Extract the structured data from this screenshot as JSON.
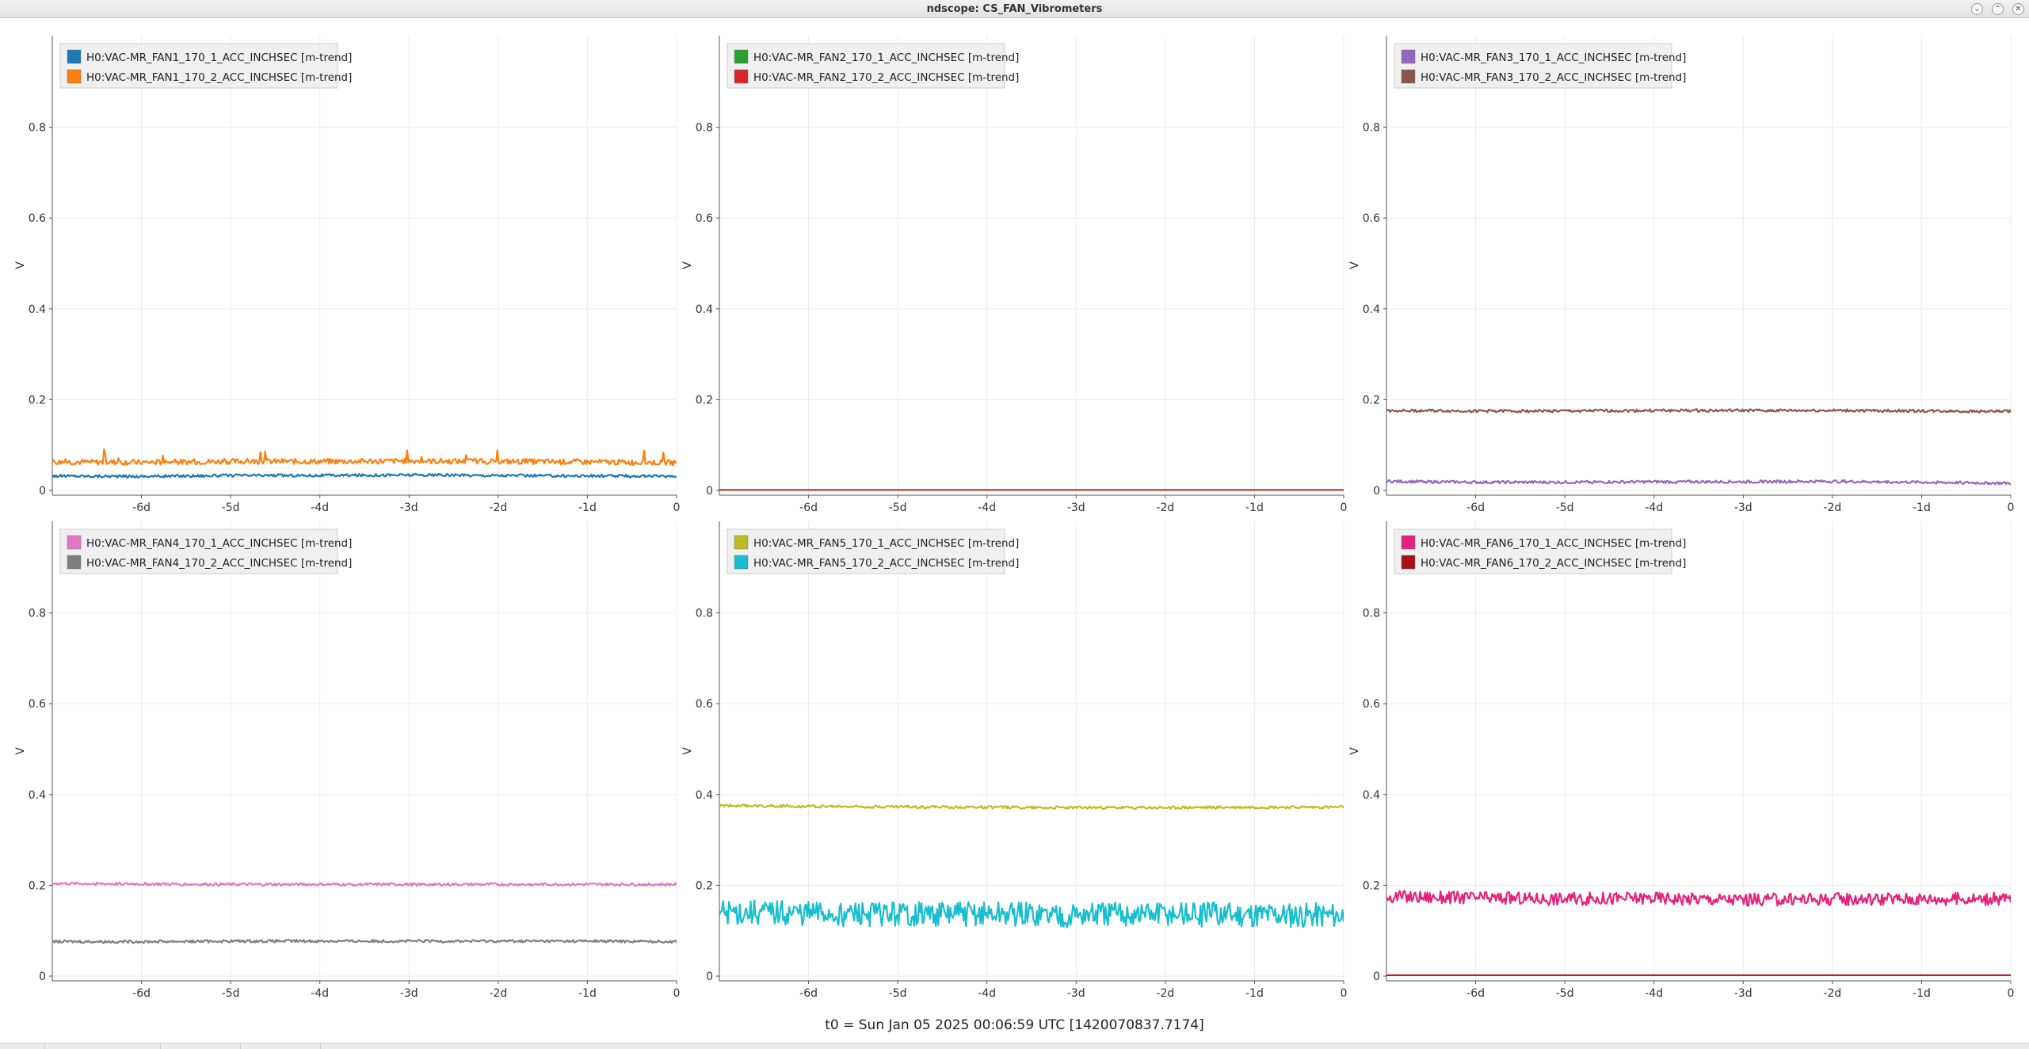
{
  "window": {
    "title": "ndscope: CS_FAN_Vibrometers"
  },
  "footer": {
    "t0_text": "t0 = Sun Jan 05 2025 00:06:59 UTC [1420070837.7174]"
  },
  "chart_data": [
    {
      "type": "line",
      "ylabel": "V",
      "ylim": [
        0,
        1
      ],
      "yticks": [
        0,
        0.2,
        0.4,
        0.6,
        0.8
      ],
      "ytick_labels": [
        "0",
        "0.2",
        "0.4",
        "0.6",
        "0.8"
      ],
      "xlim": [
        -7,
        0
      ],
      "xticks": [
        -6,
        -5,
        -4,
        -3,
        -2,
        -1,
        0
      ],
      "xtick_labels": [
        "-6d",
        "-5d",
        "-4d",
        "-3d",
        "-2d",
        "-1d",
        "0"
      ],
      "grid": true,
      "legend": "top-left",
      "series": [
        {
          "name": "H0:VAC-MR_FAN1_170_1_ACC_INCHSEC [m-trend]",
          "color": "#1f77b4",
          "x": [
            -7,
            -6,
            -5,
            -4,
            -3,
            -2,
            -1,
            0
          ],
          "y": [
            0.032,
            0.031,
            0.033,
            0.033,
            0.034,
            0.033,
            0.032,
            0.031
          ]
        },
        {
          "name": "H0:VAC-MR_FAN1_170_2_ACC_INCHSEC [m-trend]",
          "color": "#ff7f0e",
          "x": [
            -7,
            -6,
            -5,
            -4,
            -3,
            -2,
            -1,
            0
          ],
          "y": [
            0.063,
            0.062,
            0.064,
            0.064,
            0.065,
            0.064,
            0.063,
            0.061
          ]
        }
      ]
    },
    {
      "type": "line",
      "ylabel": "V",
      "ylim": [
        0,
        1
      ],
      "yticks": [
        0,
        0.2,
        0.4,
        0.6,
        0.8
      ],
      "ytick_labels": [
        "0",
        "0.2",
        "0.4",
        "0.6",
        "0.8"
      ],
      "xlim": [
        -7,
        0
      ],
      "xticks": [
        -6,
        -5,
        -4,
        -3,
        -2,
        -1,
        0
      ],
      "xtick_labels": [
        "-6d",
        "-5d",
        "-4d",
        "-3d",
        "-2d",
        "-1d",
        "0"
      ],
      "grid": true,
      "legend": "top-left",
      "series": [
        {
          "name": "H0:VAC-MR_FAN2_170_1_ACC_INCHSEC [m-trend]",
          "color": "#2ca02c",
          "x": [
            -7,
            0
          ],
          "y": [
            0.001,
            0.001
          ]
        },
        {
          "name": "H0:VAC-MR_FAN2_170_2_ACC_INCHSEC [m-trend]",
          "color": "#d62728",
          "x": [
            -7,
            0
          ],
          "y": [
            0.001,
            0.001
          ]
        }
      ]
    },
    {
      "type": "line",
      "ylabel": "V",
      "ylim": [
        0,
        1
      ],
      "yticks": [
        0,
        0.2,
        0.4,
        0.6,
        0.8
      ],
      "ytick_labels": [
        "0",
        "0.2",
        "0.4",
        "0.6",
        "0.8"
      ],
      "xlim": [
        -7,
        0
      ],
      "xticks": [
        -6,
        -5,
        -4,
        -3,
        -2,
        -1,
        0
      ],
      "xtick_labels": [
        "-6d",
        "-5d",
        "-4d",
        "-3d",
        "-2d",
        "-1d",
        "0"
      ],
      "grid": true,
      "legend": "top-left",
      "series": [
        {
          "name": "H0:VAC-MR_FAN3_170_1_ACC_INCHSEC [m-trend]",
          "color": "#9467bd",
          "x": [
            -7,
            -6,
            -5,
            -4,
            -3,
            -2,
            -1,
            0
          ],
          "y": [
            0.02,
            0.018,
            0.018,
            0.019,
            0.019,
            0.02,
            0.018,
            0.016
          ]
        },
        {
          "name": "H0:VAC-MR_FAN3_170_2_ACC_INCHSEC [m-trend]",
          "color": "#8c564b",
          "x": [
            -7,
            -6,
            -5,
            -4,
            -3,
            -2,
            -1,
            0
          ],
          "y": [
            0.176,
            0.175,
            0.175,
            0.176,
            0.176,
            0.176,
            0.175,
            0.174
          ]
        }
      ]
    },
    {
      "type": "line",
      "ylabel": "V",
      "ylim": [
        0,
        1
      ],
      "yticks": [
        0,
        0.2,
        0.4,
        0.6,
        0.8
      ],
      "ytick_labels": [
        "0",
        "0.2",
        "0.4",
        "0.6",
        "0.8"
      ],
      "xlim": [
        -7,
        0
      ],
      "xticks": [
        -6,
        -5,
        -4,
        -3,
        -2,
        -1,
        0
      ],
      "xtick_labels": [
        "-6d",
        "-5d",
        "-4d",
        "-3d",
        "-2d",
        "-1d",
        "0"
      ],
      "grid": true,
      "legend": "top-left",
      "series": [
        {
          "name": "H0:VAC-MR_FAN4_170_1_ACC_INCHSEC [m-trend]",
          "color": "#e377c2",
          "x": [
            -7,
            -6,
            -5,
            -4,
            -3,
            -2,
            -1,
            0
          ],
          "y": [
            0.204,
            0.203,
            0.202,
            0.202,
            0.202,
            0.202,
            0.202,
            0.202
          ]
        },
        {
          "name": "H0:VAC-MR_FAN4_170_2_ACC_INCHSEC [m-trend]",
          "color": "#7f7f7f",
          "x": [
            -7,
            -6,
            -5,
            -4,
            -3,
            -2,
            -1,
            0
          ],
          "y": [
            0.076,
            0.076,
            0.077,
            0.077,
            0.077,
            0.077,
            0.077,
            0.076
          ]
        }
      ]
    },
    {
      "type": "line",
      "ylabel": "V",
      "ylim": [
        0,
        1
      ],
      "yticks": [
        0,
        0.2,
        0.4,
        0.6,
        0.8
      ],
      "ytick_labels": [
        "0",
        "0.2",
        "0.4",
        "0.6",
        "0.8"
      ],
      "xlim": [
        -7,
        0
      ],
      "xticks": [
        -6,
        -5,
        -4,
        -3,
        -2,
        -1,
        0
      ],
      "xtick_labels": [
        "-6d",
        "-5d",
        "-4d",
        "-3d",
        "-2d",
        "-1d",
        "0"
      ],
      "grid": true,
      "legend": "top-left",
      "series": [
        {
          "name": "H0:VAC-MR_FAN5_170_1_ACC_INCHSEC [m-trend]",
          "color": "#bcbd22",
          "x": [
            -7,
            -6,
            -5,
            -4,
            -3,
            -2,
            -1,
            0
          ],
          "y": [
            0.376,
            0.374,
            0.373,
            0.372,
            0.371,
            0.371,
            0.372,
            0.372
          ]
        },
        {
          "name": "H0:VAC-MR_FAN5_170_2_ACC_INCHSEC [m-trend]",
          "color": "#17becf",
          "x": [
            -7,
            -6,
            -5,
            -4,
            -3,
            -2,
            -1,
            0
          ],
          "y": [
            0.14,
            0.137,
            0.136,
            0.136,
            0.134,
            0.136,
            0.136,
            0.134
          ]
        }
      ]
    },
    {
      "type": "line",
      "ylabel": "V",
      "ylim": [
        0,
        1
      ],
      "yticks": [
        0,
        0.2,
        0.4,
        0.6,
        0.8
      ],
      "ytick_labels": [
        "0",
        "0.2",
        "0.4",
        "0.6",
        "0.8"
      ],
      "xlim": [
        -7,
        0
      ],
      "xticks": [
        -6,
        -5,
        -4,
        -3,
        -2,
        -1,
        0
      ],
      "xtick_labels": [
        "-6d",
        "-5d",
        "-4d",
        "-3d",
        "-2d",
        "-1d",
        "0"
      ],
      "grid": true,
      "legend": "top-left",
      "series": [
        {
          "name": "H0:VAC-MR_FAN6_170_1_ACC_INCHSEC [m-trend]",
          "color": "#e7217a",
          "x": [
            -7,
            -6,
            -5,
            -4,
            -3,
            -2,
            -1,
            0
          ],
          "y": [
            0.175,
            0.172,
            0.17,
            0.172,
            0.168,
            0.17,
            0.17,
            0.17
          ]
        },
        {
          "name": "H0:VAC-MR_FAN6_170_2_ACC_INCHSEC [m-trend]",
          "color": "#a50f15",
          "x": [
            -7,
            0
          ],
          "y": [
            0.002,
            0.002
          ]
        }
      ]
    }
  ]
}
